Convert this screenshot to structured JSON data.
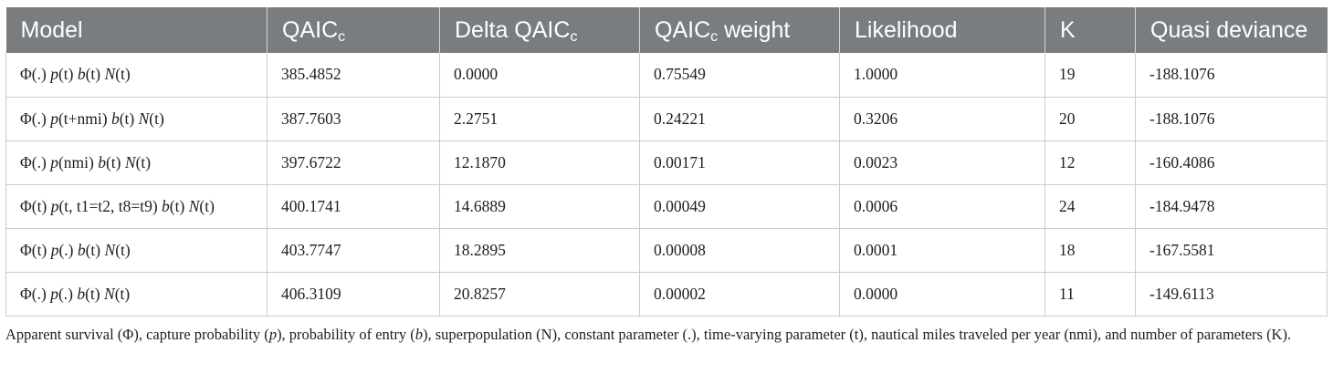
{
  "table": {
    "headers": [
      {
        "text": "Model",
        "sub": ""
      },
      {
        "text": "QAIC",
        "sub": "c"
      },
      {
        "text": "Delta QAIC",
        "sub": "c"
      },
      {
        "text": "QAIC",
        "sub": "c",
        "after": " weight"
      },
      {
        "text": "Likelihood",
        "sub": ""
      },
      {
        "text": "K",
        "sub": ""
      },
      {
        "text": "Quasi deviance",
        "sub": ""
      }
    ],
    "rows": [
      {
        "model": [
          "Φ(.) ",
          "p",
          "(t) ",
          "b",
          "(t) ",
          "N",
          "(t)"
        ],
        "qaicc": "385.4852",
        "delta": "0.0000",
        "weight": "0.75549",
        "likelihood": "1.0000",
        "k": "19",
        "deviance": "-188.1076"
      },
      {
        "model": [
          "Φ(.) ",
          "p",
          "(t+nmi) ",
          "b",
          "(t) ",
          "N",
          "(t)"
        ],
        "qaicc": "387.7603",
        "delta": "2.2751",
        "weight": "0.24221",
        "likelihood": "0.3206",
        "k": "20",
        "deviance": "-188.1076"
      },
      {
        "model": [
          "Φ(.) ",
          "p",
          "(nmi) ",
          "b",
          "(t) ",
          "N",
          "(t)"
        ],
        "qaicc": "397.6722",
        "delta": "12.1870",
        "weight": "0.00171",
        "likelihood": "0.0023",
        "k": "12",
        "deviance": "-160.4086"
      },
      {
        "model": [
          "Φ(t) ",
          "p",
          "(t, t1=t2, t8=t9) ",
          "b",
          "(t) ",
          "N",
          "(t)"
        ],
        "qaicc": "400.1741",
        "delta": "14.6889",
        "weight": "0.00049",
        "likelihood": "0.0006",
        "k": "24",
        "deviance": "-184.9478"
      },
      {
        "model": [
          "Φ(t) ",
          "p",
          "(.) ",
          "b",
          "(t) ",
          "N",
          "(t)"
        ],
        "qaicc": "403.7747",
        "delta": "18.2895",
        "weight": "0.00008",
        "likelihood": "0.0001",
        "k": "18",
        "deviance": "-167.5581"
      },
      {
        "model": [
          "Φ(.) ",
          "p",
          "(.) ",
          "b",
          "(t) ",
          "N",
          "(t)"
        ],
        "qaicc": "406.3109",
        "delta": "20.8257",
        "weight": "0.00002",
        "likelihood": "0.0000",
        "k": "11",
        "deviance": "-149.6113"
      }
    ]
  },
  "footnote": {
    "parts": [
      "Apparent survival (Φ), capture probability (",
      "p",
      "), probability of entry (",
      "b",
      "), superpopulation (N), constant parameter (.), time-varying parameter (t), nautical miles traveled per year (nmi), and number of parameters (K)."
    ]
  }
}
